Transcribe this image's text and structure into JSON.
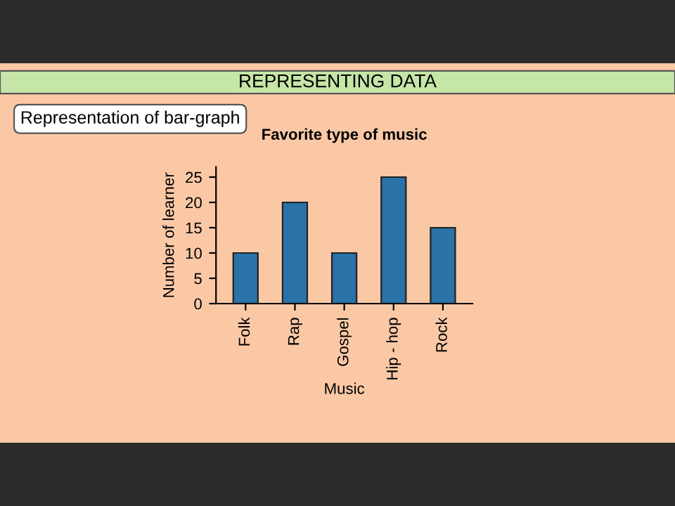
{
  "chart_data": {
    "type": "bar",
    "title": "Favorite type of music",
    "xlabel": "Music",
    "ylabel": "Number of learner",
    "categories": [
      "Folk",
      "Rap",
      "Gospel",
      "Hip - hop",
      "Rock"
    ],
    "values": [
      10,
      20,
      10,
      25,
      15
    ],
    "color": "#2a72a8",
    "ylim": [
      0,
      27
    ],
    "yticks": [
      0,
      5,
      10,
      15,
      20,
      25
    ],
    "grid": false,
    "annotations": [
      "REPRESENTING DATA",
      "Representation of bar-graph"
    ]
  }
}
